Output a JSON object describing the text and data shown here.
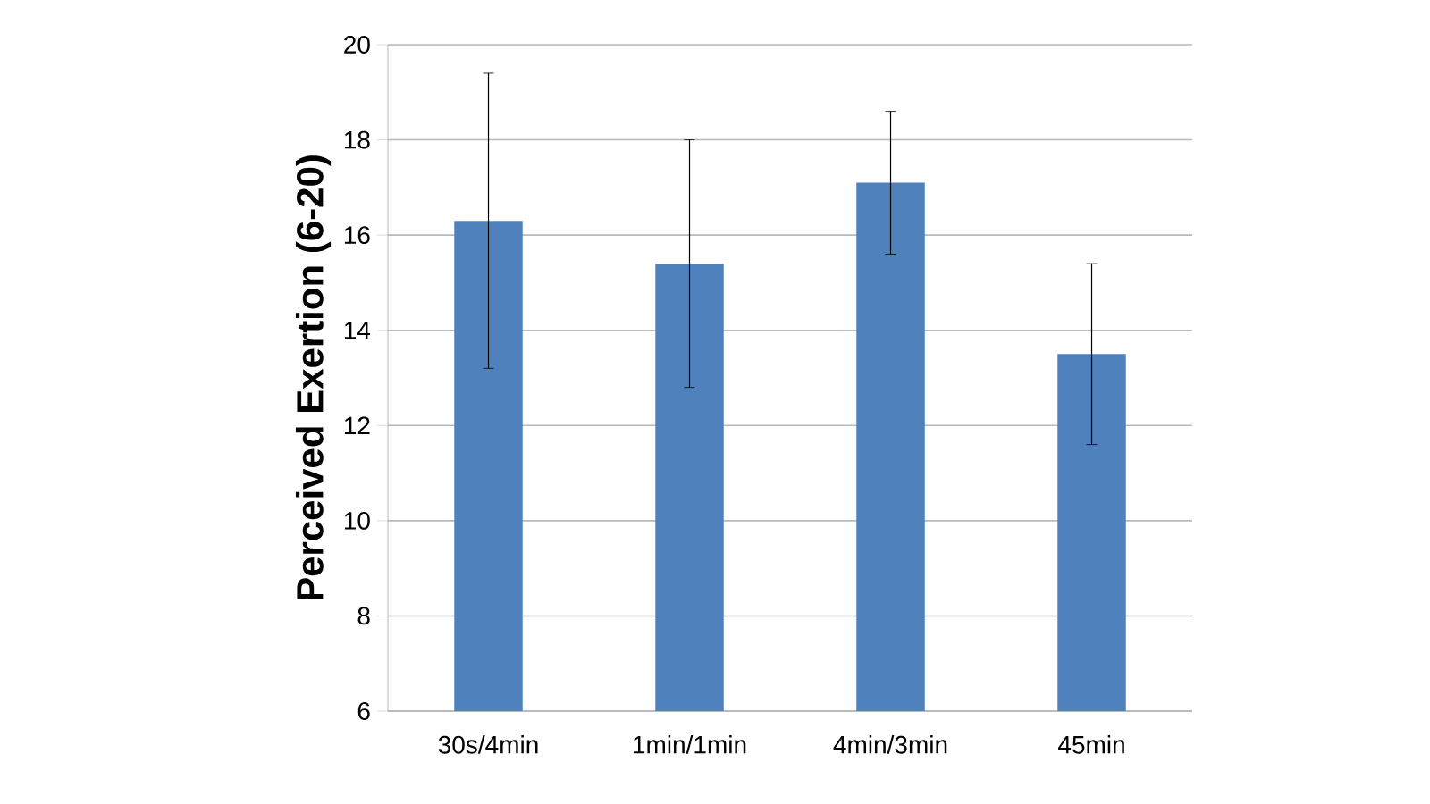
{
  "chart_data": {
    "type": "bar",
    "ylabel": "Perceived Exertion (6-20)",
    "categories": [
      "30s/4min",
      "1min/1min",
      "4min/3min",
      "45min"
    ],
    "values": [
      16.3,
      15.4,
      17.1,
      13.5
    ],
    "errors": [
      3.1,
      2.6,
      1.5,
      1.9
    ],
    "color": "#4f81bd",
    "ylim": [
      6,
      20
    ],
    "yticks": [
      6,
      8,
      10,
      12,
      14,
      16,
      18,
      20
    ],
    "grid": "y"
  }
}
